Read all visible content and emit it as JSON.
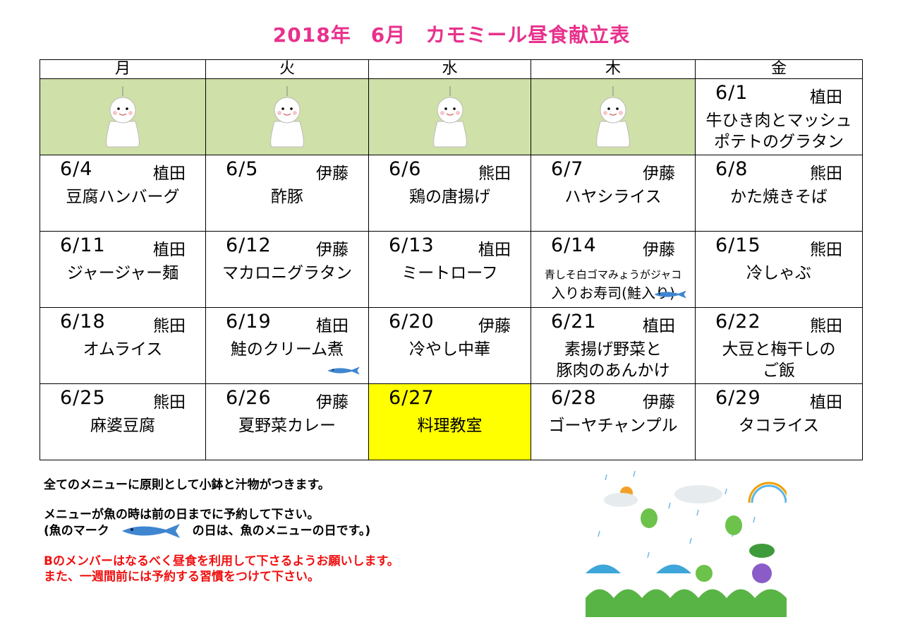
{
  "title": {
    "year": "2018年",
    "month": "6月",
    "name": "カモミール昼食献立表"
  },
  "weekdays": [
    "月",
    "火",
    "水",
    "木",
    "金"
  ],
  "weeks": [
    [
      {
        "blank": true,
        "icon": "teruteru-bozu-green-bow-icon"
      },
      {
        "blank": true,
        "icon": "teruteru-bozu-red-ribbon-icon"
      },
      {
        "blank": true,
        "icon": "teruteru-bozu-bell-icon"
      },
      {
        "blank": true,
        "icon": "teruteru-bozu-top-hat-icon"
      },
      {
        "date": "6/1",
        "cook": "植田",
        "menu": "牛ひき肉とマッシュ",
        "menu2": "ポテトのグラタン"
      }
    ],
    [
      {
        "date": "6/4",
        "cook": "植田",
        "menu": "豆腐ハンバーグ"
      },
      {
        "date": "6/5",
        "cook": "伊藤",
        "menu": "酢豚"
      },
      {
        "date": "6/6",
        "cook": "熊田",
        "menu": "鶏の唐揚げ"
      },
      {
        "date": "6/7",
        "cook": "伊藤",
        "menu": "ハヤシライス"
      },
      {
        "date": "6/8",
        "cook": "熊田",
        "menu": "かた焼きそば"
      }
    ],
    [
      {
        "date": "6/11",
        "cook": "植田",
        "menu": "ジャージャー麺"
      },
      {
        "date": "6/12",
        "cook": "伊藤",
        "menu": "マカロニグラタン"
      },
      {
        "date": "6/13",
        "cook": "植田",
        "menu": "ミートローフ"
      },
      {
        "date": "6/14",
        "cook": "伊藤",
        "menu": "青しそ白ゴマみょうがジャコ",
        "menu2": "入りお寿司(鮭入り)",
        "small": true,
        "fish": true
      },
      {
        "date": "6/15",
        "cook": "熊田",
        "menu": "冷しゃぶ"
      }
    ],
    [
      {
        "date": "6/18",
        "cook": "熊田",
        "menu": "オムライス"
      },
      {
        "date": "6/19",
        "cook": "植田",
        "menu": "鮭のクリーム煮",
        "fish": true
      },
      {
        "date": "6/20",
        "cook": "伊藤",
        "menu": "冷やし中華"
      },
      {
        "date": "6/21",
        "cook": "植田",
        "menu": "素揚げ野菜と",
        "menu2": "豚肉のあんかけ"
      },
      {
        "date": "6/22",
        "cook": "熊田",
        "menu": "大豆と梅干しの",
        "menu2": "ご飯"
      }
    ],
    [
      {
        "date": "6/25",
        "cook": "熊田",
        "menu": "麻婆豆腐"
      },
      {
        "date": "6/26",
        "cook": "伊藤",
        "menu": "夏野菜カレー"
      },
      {
        "date": "6/27",
        "cook": "",
        "menu": "料理教室",
        "highlight": true
      },
      {
        "date": "6/28",
        "cook": "伊藤",
        "menu": "ゴーヤチャンプル"
      },
      {
        "date": "6/29",
        "cook": "植田",
        "menu": "タコライス"
      }
    ]
  ],
  "notes": {
    "line1": "全てのメニューに原則として小鉢と汁物がつきます。",
    "line2": "メニューが魚の時は前の日までに予約して下さい。",
    "line3a": "(魚のマーク",
    "line3b": "の日は、魚のメニューの日です。)",
    "red1": "Bのメンバーはなるべく昼食を利用して下さるようお願いします。",
    "red2": "また、一週間前には予約する習慣をつけて下さい。"
  },
  "colors": {
    "title": "#e8318c",
    "blank_cell": "#cfe0a8",
    "highlight": "#ffff00",
    "note_red": "#f01010",
    "fish": "#3f86d0"
  },
  "illustration": "rainy-season-frogs-umbrellas-hydrangea-illustration"
}
